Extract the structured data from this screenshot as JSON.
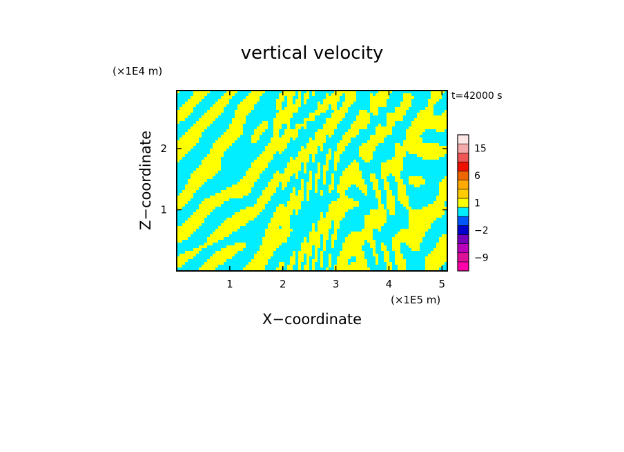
{
  "chart_data": {
    "type": "heatmap",
    "title": "vertical velocity",
    "xlabel": "X−coordinate",
    "ylabel": "Z−coordinate",
    "x_unit": "(×1E5 m)",
    "y_unit": "(×1E4 m)",
    "time_label": "t=42000 s",
    "xlim": [
      0,
      5.1
    ],
    "ylim": [
      0,
      2.95
    ],
    "x_ticks": [
      "1",
      "2",
      "3",
      "4",
      "5"
    ],
    "y_ticks": [
      "1",
      "2"
    ],
    "x_tick_values": [
      1,
      2,
      3,
      4,
      5
    ],
    "y_tick_values": [
      1,
      2
    ],
    "field_colors": {
      "positive": "#ffff00",
      "negative": "#00eeff"
    },
    "colorbar": {
      "levels": [
        {
          "label": "",
          "color": "#ff00aa"
        },
        {
          "label": "-9",
          "color": "#dd1199"
        },
        {
          "label": "",
          "color": "#bb00bb"
        },
        {
          "label": "",
          "color": "#7700bb"
        },
        {
          "label": "-2",
          "color": "#0000cc"
        },
        {
          "label": "",
          "color": "#0055ff"
        },
        {
          "label": "",
          "color": "#00eeff"
        },
        {
          "label": "1",
          "color": "#ffff00"
        },
        {
          "label": "",
          "color": "#ffcc00"
        },
        {
          "label": "",
          "color": "#ffaa00"
        },
        {
          "label": "6",
          "color": "#ee6600"
        },
        {
          "label": "",
          "color": "#ee1100"
        },
        {
          "label": "",
          "color": "#ee5555"
        },
        {
          "label": "15",
          "color": "#f4aaaa"
        },
        {
          "label": "",
          "color": "#fde6e6"
        }
      ]
    }
  }
}
